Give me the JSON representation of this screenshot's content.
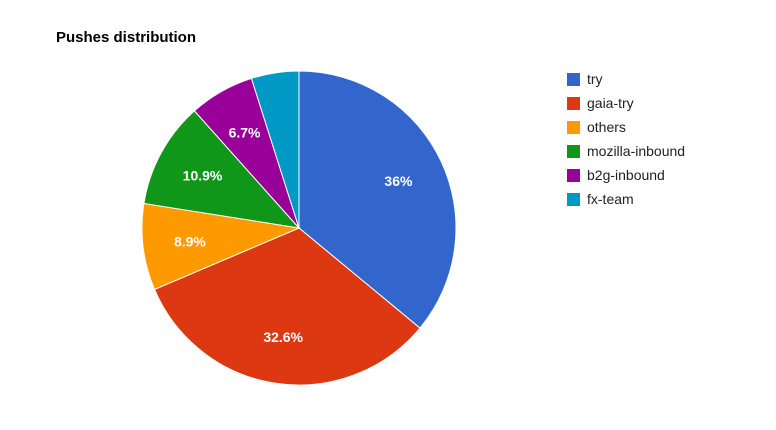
{
  "chart_data": {
    "type": "pie",
    "title": "Pushes distribution",
    "legend_position": "right",
    "slices": [
      {
        "name": "try",
        "value": 36,
        "label": "36%",
        "color": "#3366cc"
      },
      {
        "name": "gaia-try",
        "value": 32.6,
        "label": "32.6%",
        "color": "#dc3912"
      },
      {
        "name": "others",
        "value": 8.9,
        "label": "8.9%",
        "color": "#ff9900"
      },
      {
        "name": "mozilla-inbound",
        "value": 10.9,
        "label": "10.9%",
        "color": "#109618"
      },
      {
        "name": "b2g-inbound",
        "value": 6.7,
        "label": "6.7%",
        "color": "#990099"
      },
      {
        "name": "fx-team",
        "value": 4.9,
        "label": "",
        "color": "#0099c6"
      }
    ]
  }
}
